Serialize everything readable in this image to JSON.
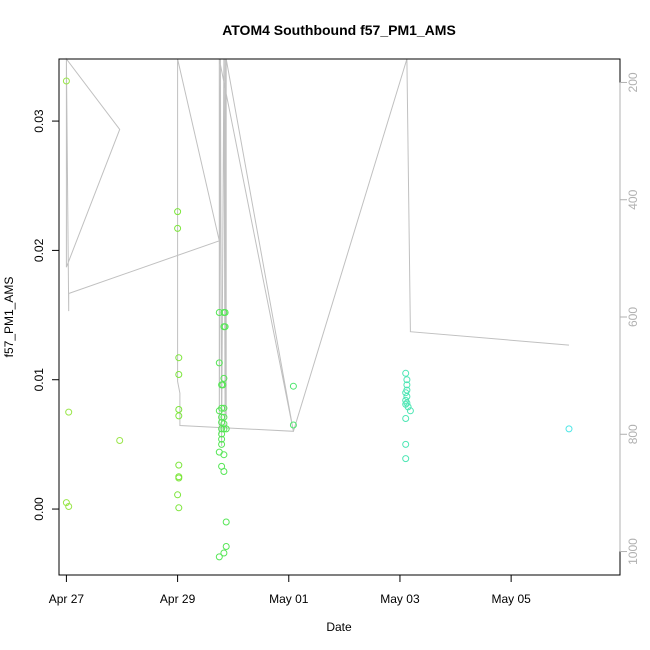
{
  "chart_data": {
    "type": "scatter",
    "title": "ATOM4 Southbound f57_PM1_AMS",
    "xlabel": "Date",
    "ylabel": "f57_PM1_AMS",
    "xlim": [
      "2016-04-26T20:48",
      "2016-05-06T23:00"
    ],
    "ylim": [
      -0.0051,
      0.0348
    ],
    "x_ticks": [
      {
        "label": "Apr 27",
        "value": "2016-04-27T00:00"
      },
      {
        "label": "Apr 29",
        "value": "2016-04-29T00:00"
      },
      {
        "label": "May 01",
        "value": "2016-05-01T00:00"
      },
      {
        "label": "May 03",
        "value": "2016-05-03T00:00"
      },
      {
        "label": "May 05",
        "value": "2016-05-05T00:00"
      }
    ],
    "y_ticks": [
      {
        "label": "0.00",
        "value": 0.0
      },
      {
        "label": "0.01",
        "value": 0.01
      },
      {
        "label": "0.02",
        "value": 0.02
      },
      {
        "label": "0.03",
        "value": 0.03
      }
    ],
    "secondary_axis": {
      "side": "right",
      "reversed": true,
      "lim": [
        160,
        1040
      ],
      "ticks": [
        {
          "label": "200",
          "value": 200
        },
        {
          "label": "400",
          "value": 400
        },
        {
          "label": "600",
          "value": 600
        },
        {
          "label": "800",
          "value": 800
        },
        {
          "label": "1000",
          "value": 1000
        }
      ],
      "color": "#b0b0b0"
    },
    "points": [
      {
        "x": "2016-04-27T00:00",
        "y": 0.0331,
        "color": "#9ae64a"
      },
      {
        "x": "2016-04-27T00:00",
        "y": 0.0005,
        "color": "#9ae64a"
      },
      {
        "x": "2016-04-27T01:00",
        "y": 0.0002,
        "color": "#9ae64a"
      },
      {
        "x": "2016-04-27T01:00",
        "y": 0.0075,
        "color": "#9ae64a"
      },
      {
        "x": "2016-04-27T23:00",
        "y": 0.0053,
        "color": "#9ae64a"
      },
      {
        "x": "2016-04-29T00:00",
        "y": 0.023,
        "color": "#7de63c"
      },
      {
        "x": "2016-04-29T00:00",
        "y": 0.0217,
        "color": "#7de63c"
      },
      {
        "x": "2016-04-29T00:30",
        "y": 0.0117,
        "color": "#7de63c"
      },
      {
        "x": "2016-04-29T00:30",
        "y": 0.0104,
        "color": "#7de63c"
      },
      {
        "x": "2016-04-29T00:30",
        "y": 0.0077,
        "color": "#7de63c"
      },
      {
        "x": "2016-04-29T00:30",
        "y": 0.0072,
        "color": "#7de63c"
      },
      {
        "x": "2016-04-29T00:30",
        "y": 0.0034,
        "color": "#7de63c"
      },
      {
        "x": "2016-04-29T00:30",
        "y": 0.0025,
        "color": "#7de63c"
      },
      {
        "x": "2016-04-29T00:30",
        "y": 0.0024,
        "color": "#7de63c"
      },
      {
        "x": "2016-04-29T00:00",
        "y": 0.0011,
        "color": "#7de63c"
      },
      {
        "x": "2016-04-29T00:30",
        "y": 0.0001,
        "color": "#7de63c"
      },
      {
        "x": "2016-04-29T18:00",
        "y": 0.0152,
        "color": "#55e655"
      },
      {
        "x": "2016-04-29T18:00",
        "y": 0.0113,
        "color": "#55e655"
      },
      {
        "x": "2016-04-29T19:00",
        "y": 0.0096,
        "color": "#55e655"
      },
      {
        "x": "2016-04-29T19:30",
        "y": 0.0096,
        "color": "#55e655"
      },
      {
        "x": "2016-04-29T18:00",
        "y": 0.0076,
        "color": "#55e655"
      },
      {
        "x": "2016-04-29T19:00",
        "y": 0.0078,
        "color": "#55e655"
      },
      {
        "x": "2016-04-29T20:00",
        "y": 0.0078,
        "color": "#55e655"
      },
      {
        "x": "2016-04-29T19:00",
        "y": 0.0071,
        "color": "#55e655"
      },
      {
        "x": "2016-04-29T20:00",
        "y": 0.0071,
        "color": "#55e655"
      },
      {
        "x": "2016-04-29T19:00",
        "y": 0.0067,
        "color": "#55e655"
      },
      {
        "x": "2016-04-29T20:00",
        "y": 0.0066,
        "color": "#55e655"
      },
      {
        "x": "2016-04-29T19:00",
        "y": 0.0062,
        "color": "#55e655"
      },
      {
        "x": "2016-04-29T20:00",
        "y": 0.0062,
        "color": "#55e655"
      },
      {
        "x": "2016-04-29T21:00",
        "y": 0.0062,
        "color": "#55e655"
      },
      {
        "x": "2016-04-29T19:00",
        "y": 0.0058,
        "color": "#55e655"
      },
      {
        "x": "2016-04-29T19:00",
        "y": 0.0054,
        "color": "#55e655"
      },
      {
        "x": "2016-04-29T19:00",
        "y": 0.005,
        "color": "#55e655"
      },
      {
        "x": "2016-04-29T18:00",
        "y": 0.0044,
        "color": "#55e655"
      },
      {
        "x": "2016-04-29T20:00",
        "y": 0.0042,
        "color": "#55e655"
      },
      {
        "x": "2016-04-29T19:00",
        "y": 0.0033,
        "color": "#55e655"
      },
      {
        "x": "2016-04-29T20:00",
        "y": 0.0029,
        "color": "#55e655"
      },
      {
        "x": "2016-04-29T20:00",
        "y": 0.0152,
        "color": "#55e655"
      },
      {
        "x": "2016-04-29T20:30",
        "y": 0.0152,
        "color": "#55e655"
      },
      {
        "x": "2016-04-29T20:00",
        "y": 0.0141,
        "color": "#55e655"
      },
      {
        "x": "2016-04-29T20:30",
        "y": 0.0141,
        "color": "#55e655"
      },
      {
        "x": "2016-04-29T20:00",
        "y": 0.0101,
        "color": "#55e655"
      },
      {
        "x": "2016-04-29T21:00",
        "y": -0.001,
        "color": "#55e655"
      },
      {
        "x": "2016-04-29T21:00",
        "y": -0.0029,
        "color": "#55e655"
      },
      {
        "x": "2016-04-29T20:00",
        "y": -0.0034,
        "color": "#55e655"
      },
      {
        "x": "2016-04-29T18:00",
        "y": -0.0037,
        "color": "#55e655"
      },
      {
        "x": "2016-05-01T02:00",
        "y": 0.0095,
        "color": "#4ee66e"
      },
      {
        "x": "2016-05-01T02:00",
        "y": 0.0065,
        "color": "#4ee66e"
      },
      {
        "x": "2016-05-03T02:30",
        "y": 0.0105,
        "color": "#4de6b4"
      },
      {
        "x": "2016-05-03T03:00",
        "y": 0.01,
        "color": "#4de6b4"
      },
      {
        "x": "2016-05-03T03:00",
        "y": 0.0096,
        "color": "#4de6b4"
      },
      {
        "x": "2016-05-03T03:00",
        "y": 0.0092,
        "color": "#4de6b4"
      },
      {
        "x": "2016-05-03T02:30",
        "y": 0.009,
        "color": "#4de6b4"
      },
      {
        "x": "2016-05-03T03:00",
        "y": 0.0087,
        "color": "#4de6b4"
      },
      {
        "x": "2016-05-03T02:30",
        "y": 0.0084,
        "color": "#4de6b4"
      },
      {
        "x": "2016-05-03T03:00",
        "y": 0.0082,
        "color": "#4de6b4"
      },
      {
        "x": "2016-05-03T02:30",
        "y": 0.0081,
        "color": "#4de6b4"
      },
      {
        "x": "2016-05-03T03:30",
        "y": 0.0079,
        "color": "#4de6b4"
      },
      {
        "x": "2016-05-03T04:30",
        "y": 0.0076,
        "color": "#4de6b4"
      },
      {
        "x": "2016-05-03T02:30",
        "y": 0.007,
        "color": "#4de6b4"
      },
      {
        "x": "2016-05-03T02:30",
        "y": 0.005,
        "color": "#4de6b4"
      },
      {
        "x": "2016-05-03T02:30",
        "y": 0.0039,
        "color": "#4de6b4"
      },
      {
        "x": "2016-05-06T01:00",
        "y": 0.0062,
        "color": "#4de6e6"
      }
    ],
    "line_series": {
      "axis": "secondary",
      "color": "#c0c0c0",
      "points": [
        {
          "x": "2016-04-27T00:00",
          "y": 158
        },
        {
          "x": "2016-04-27T00:00",
          "y": 515
        },
        {
          "x": "2016-04-27T23:00",
          "y": 280
        },
        {
          "x": "2016-04-27T00:00",
          "y": 158
        },
        {
          "x": "2016-04-27T01:00",
          "y": 590
        },
        {
          "x": "2016-04-27T01:00",
          "y": 560
        },
        {
          "x": "2016-04-29T18:00",
          "y": 470
        },
        {
          "x": "2016-04-29T00:00",
          "y": 158
        },
        {
          "x": "2016-04-29T00:00",
          "y": 710
        },
        {
          "x": "2016-04-29T01:00",
          "y": 730
        },
        {
          "x": "2016-04-29T01:00",
          "y": 785
        },
        {
          "x": "2016-05-01T02:00",
          "y": 795
        },
        {
          "x": "2016-04-29T18:00",
          "y": 158
        },
        {
          "x": "2016-04-29T18:00",
          "y": 800
        },
        {
          "x": "2016-04-29T18:30",
          "y": 158
        },
        {
          "x": "2016-04-29T19:00",
          "y": 820
        },
        {
          "x": "2016-04-29T20:00",
          "y": 158
        },
        {
          "x": "2016-04-29T20:30",
          "y": 790
        },
        {
          "x": "2016-04-29T20:30",
          "y": 158
        },
        {
          "x": "2016-04-29T21:00",
          "y": 770
        },
        {
          "x": "2016-04-29T21:00",
          "y": 158
        },
        {
          "x": "2016-05-01T02:00",
          "y": 795
        },
        {
          "x": "2016-05-03T03:00",
          "y": 158
        },
        {
          "x": "2016-05-03T04:30",
          "y": 625
        },
        {
          "x": "2016-05-06T01:00",
          "y": 648
        }
      ]
    }
  }
}
